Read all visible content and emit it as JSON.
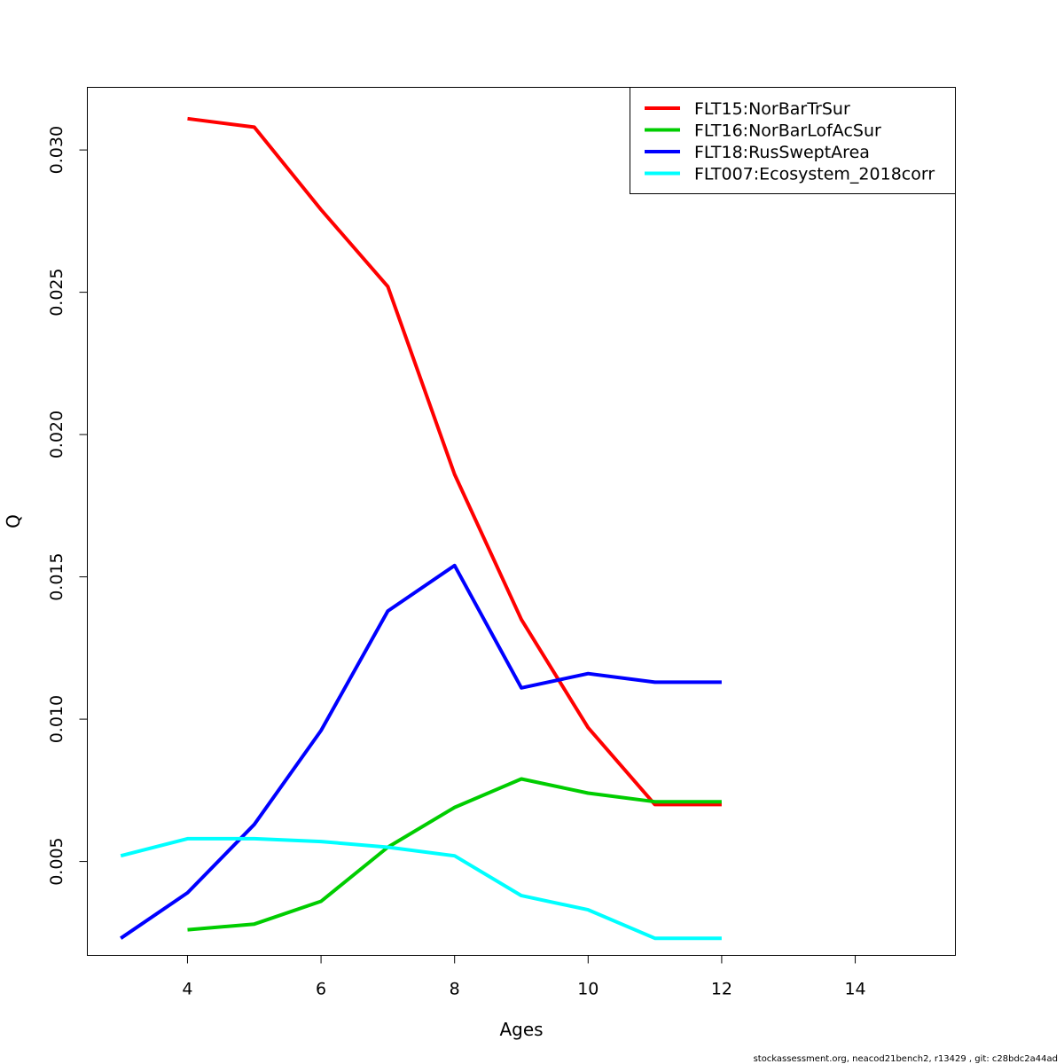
{
  "chart_data": {
    "type": "line",
    "xlabel": "Ages",
    "ylabel": "Q",
    "xlim": [
      2.5,
      15.5
    ],
    "ylim": [
      0.0017,
      0.0322
    ],
    "xticks": [
      4,
      6,
      8,
      10,
      12,
      14
    ],
    "xtick_labels": [
      "4",
      "6",
      "8",
      "10",
      "12",
      "14"
    ],
    "yticks": [
      0.005,
      0.01,
      0.015,
      0.02,
      0.025,
      0.03
    ],
    "ytick_labels": [
      "0.005",
      "0.010",
      "0.015",
      "0.020",
      "0.025",
      "0.030"
    ],
    "grid": false,
    "legend_position": "top-right",
    "series": [
      {
        "name": "FLT15:NorBarTrSur",
        "color": "#ff0000",
        "x": [
          4,
          5,
          6,
          7,
          8,
          9,
          10,
          11,
          12
        ],
        "y": [
          0.0311,
          0.0308,
          0.0279,
          0.0252,
          0.0186,
          0.0135,
          0.0097,
          0.007,
          0.007
        ]
      },
      {
        "name": "FLT16:NorBarLofAcSur",
        "color": "#00cd00",
        "x": [
          4,
          5,
          6,
          7,
          8,
          9,
          10,
          11,
          12
        ],
        "y": [
          0.0026,
          0.0028,
          0.0036,
          0.0055,
          0.0069,
          0.0079,
          0.0074,
          0.0071,
          0.0071
        ]
      },
      {
        "name": "FLT18:RusSweptArea",
        "color": "#0000ff",
        "x": [
          3,
          4,
          5,
          6,
          7,
          8,
          9,
          10,
          11,
          12
        ],
        "y": [
          0.0023,
          0.0039,
          0.0063,
          0.0096,
          0.0138,
          0.0154,
          0.0111,
          0.0116,
          0.0113,
          0.0113
        ]
      },
      {
        "name": "FLT007:Ecosystem_2018corr",
        "color": "#00ffff",
        "x": [
          3,
          4,
          5,
          6,
          7,
          8,
          9,
          10,
          11,
          12
        ],
        "y": [
          0.0052,
          0.0058,
          0.0058,
          0.0057,
          0.0055,
          0.0052,
          0.0038,
          0.0033,
          0.0023,
          0.0023
        ]
      }
    ]
  },
  "footer": "stockassessment.org, neacod21bench2, r13429 , git: c28bdc2a44ad"
}
